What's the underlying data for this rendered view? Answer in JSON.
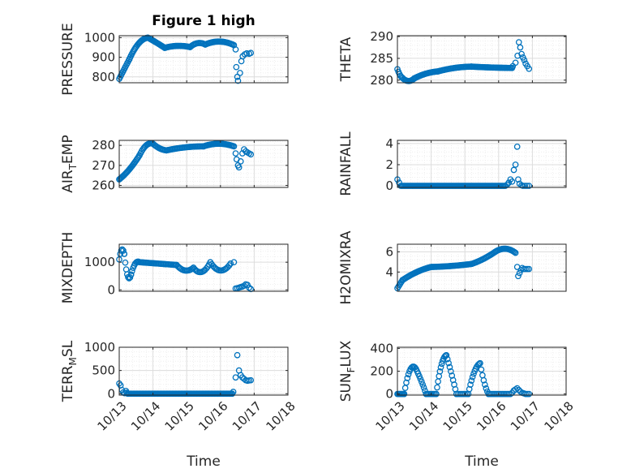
{
  "figure": {
    "title": "Figure 1 high",
    "xlabel": "Time",
    "colors": {
      "marker": "#0072BD",
      "axis": "#262626",
      "grid_major": "#dcdcdc",
      "grid_minor": "#ebebeb"
    }
  },
  "chart_data": [
    {
      "id": "pressure",
      "type": "scatter",
      "title": "Figure 1 high",
      "ylabel": "PRESSURE",
      "xlim": [
        0,
        5
      ],
      "ylim": [
        770,
        1010
      ],
      "xticks": [
        0,
        1,
        2,
        3,
        4,
        5
      ],
      "xticklabels": [
        "10/13",
        "10/14",
        "10/15",
        "10/16",
        "10/17",
        "10/18"
      ],
      "yticks": [
        800,
        900,
        1000
      ],
      "yticklabels": [
        "800",
        "900",
        "1000"
      ],
      "grid": true,
      "segments": [
        {
          "x0": 0,
          "x1": 0.3,
          "n": 12,
          "y": [
            790,
            840,
            890
          ]
        },
        {
          "x0": 0.3,
          "x1": 0.85,
          "n": 22,
          "y": [
            890,
            970,
            1000
          ]
        },
        {
          "x0": 0.85,
          "x1": 1.35,
          "n": 18,
          "y": [
            1000,
            975,
            948
          ]
        },
        {
          "x0": 1.35,
          "x1": 2.1,
          "n": 24,
          "y": [
            948,
            958,
            952
          ]
        },
        {
          "x0": 2.1,
          "x1": 2.55,
          "n": 14,
          "y": [
            952,
            972,
            965
          ]
        },
        {
          "x0": 2.55,
          "x1": 3.4,
          "n": 26,
          "y": [
            965,
            980,
            962
          ]
        }
      ],
      "points": [
        [
          3.45,
          940
        ],
        [
          3.47,
          850
        ],
        [
          3.5,
          800
        ],
        [
          3.52,
          780
        ],
        [
          3.58,
          820
        ],
        [
          3.62,
          880
        ],
        [
          3.66,
          905
        ],
        [
          3.72,
          915
        ],
        [
          3.78,
          920
        ],
        [
          3.85,
          918
        ],
        [
          3.9,
          922
        ]
      ]
    },
    {
      "id": "theta",
      "type": "scatter",
      "ylabel": "THETA",
      "xlim": [
        0,
        5
      ],
      "ylim": [
        279.4,
        290.2
      ],
      "xticks": [
        0,
        1,
        2,
        3,
        4,
        5
      ],
      "xticklabels": [
        "10/13",
        "10/14",
        "10/15",
        "10/16",
        "10/17",
        "10/18"
      ],
      "yticks": [
        280,
        285,
        290
      ],
      "yticklabels": [
        "280",
        "285",
        "290"
      ],
      "grid": true,
      "segments": [
        {
          "x0": 0,
          "x1": 0.15,
          "n": 6,
          "y": [
            282.5,
            281.2,
            280.5
          ]
        },
        {
          "x0": 0.15,
          "x1": 0.5,
          "n": 12,
          "y": [
            280.5,
            279.8,
            280.4
          ]
        },
        {
          "x0": 0.5,
          "x1": 1.2,
          "n": 24,
          "y": [
            280.4,
            281.5,
            282.0
          ]
        },
        {
          "x0": 1.2,
          "x1": 2.2,
          "n": 30,
          "y": [
            282.0,
            282.8,
            283.1
          ]
        },
        {
          "x0": 2.2,
          "x1": 3.4,
          "n": 36,
          "y": [
            283.1,
            282.9,
            282.8
          ]
        }
      ],
      "points": [
        [
          3.42,
          283.2
        ],
        [
          3.5,
          284.0
        ],
        [
          3.56,
          285.6
        ],
        [
          3.6,
          288.7
        ],
        [
          3.64,
          287.5
        ],
        [
          3.68,
          286.0
        ],
        [
          3.72,
          285.2
        ],
        [
          3.76,
          284.6
        ],
        [
          3.8,
          283.8
        ],
        [
          3.85,
          283.2
        ],
        [
          3.9,
          282.6
        ]
      ]
    },
    {
      "id": "air_temp",
      "type": "scatter",
      "ylabel": "AIR_TEMP",
      "ylabel_parts": [
        "AIR",
        "T",
        "EMP"
      ],
      "xlim": [
        0,
        5
      ],
      "ylim": [
        259,
        282.5
      ],
      "xticks": [
        0,
        1,
        2,
        3,
        4,
        5
      ],
      "xticklabels": [
        "10/13",
        "10/14",
        "10/15",
        "10/16",
        "10/17",
        "10/18"
      ],
      "yticks": [
        260,
        270,
        280
      ],
      "yticklabels": [
        "260",
        "270",
        "280"
      ],
      "grid": true,
      "segments": [
        {
          "x0": 0,
          "x1": 0.6,
          "n": 24,
          "y": [
            263,
            268,
            275
          ]
        },
        {
          "x0": 0.6,
          "x1": 1.0,
          "n": 14,
          "y": [
            275,
            280,
            280.8
          ]
        },
        {
          "x0": 1.0,
          "x1": 1.4,
          "n": 12,
          "y": [
            280.8,
            278.5,
            277.5
          ]
        },
        {
          "x0": 1.4,
          "x1": 2.5,
          "n": 32,
          "y": [
            277.5,
            279.0,
            279.5
          ]
        },
        {
          "x0": 2.5,
          "x1": 3.4,
          "n": 28,
          "y": [
            279.5,
            280.8,
            279.5
          ]
        }
      ],
      "points": [
        [
          3.45,
          276
        ],
        [
          3.48,
          273
        ],
        [
          3.52,
          270
        ],
        [
          3.55,
          269
        ],
        [
          3.6,
          272
        ],
        [
          3.65,
          276
        ],
        [
          3.7,
          278
        ],
        [
          3.75,
          277
        ],
        [
          3.8,
          276.5
        ],
        [
          3.85,
          276
        ],
        [
          3.9,
          275.5
        ]
      ]
    },
    {
      "id": "rainfall",
      "type": "scatter",
      "ylabel": "RAINFALL",
      "xlim": [
        0,
        5
      ],
      "ylim": [
        -0.15,
        4.3
      ],
      "xticks": [
        0,
        1,
        2,
        3,
        4,
        5
      ],
      "xticklabels": [
        "10/13",
        "10/14",
        "10/15",
        "10/16",
        "10/17",
        "10/18"
      ],
      "yticks": [
        0,
        2,
        4
      ],
      "yticklabels": [
        "0",
        "2",
        "4"
      ],
      "grid": true,
      "segments": [
        {
          "x0": 0.1,
          "x1": 3.2,
          "n": 95,
          "y": [
            0,
            0,
            0
          ]
        }
      ],
      "points": [
        [
          0,
          0.6
        ],
        [
          0.05,
          0.3
        ],
        [
          3.25,
          0.1
        ],
        [
          3.3,
          0.3
        ],
        [
          3.35,
          0.6
        ],
        [
          3.4,
          0.4
        ],
        [
          3.45,
          1.5
        ],
        [
          3.5,
          2.0
        ],
        [
          3.55,
          3.7
        ],
        [
          3.58,
          0.6
        ],
        [
          3.62,
          0.2
        ],
        [
          3.68,
          0.05
        ],
        [
          3.72,
          0
        ],
        [
          3.78,
          0
        ],
        [
          3.84,
          0
        ],
        [
          3.9,
          0
        ]
      ]
    },
    {
      "id": "mixdepth",
      "type": "scatter",
      "ylabel": "MIXDEPTH",
      "xlim": [
        0,
        5
      ],
      "ylim": [
        -50,
        1650
      ],
      "xticks": [
        0,
        1,
        2,
        3,
        4,
        5
      ],
      "xticklabels": [
        "10/13",
        "10/14",
        "10/15",
        "10/16",
        "10/17",
        "10/18"
      ],
      "yticks": [
        0,
        1000
      ],
      "yticklabels": [
        "0",
        "1000"
      ],
      "grid": true,
      "segments": [
        {
          "x0": 0,
          "x1": 0.15,
          "n": 6,
          "y": [
            1100,
            1450,
            1300
          ]
        },
        {
          "x0": 0.15,
          "x1": 0.35,
          "n": 8,
          "y": [
            1300,
            500,
            550
          ]
        },
        {
          "x0": 0.35,
          "x1": 0.6,
          "n": 9,
          "y": [
            550,
            950,
            1000
          ]
        },
        {
          "x0": 0.6,
          "x1": 1.7,
          "n": 32,
          "y": [
            1000,
            950,
            900
          ]
        },
        {
          "x0": 1.7,
          "x1": 2.2,
          "n": 14,
          "y": [
            900,
            700,
            800
          ]
        },
        {
          "x0": 2.2,
          "x1": 2.7,
          "n": 14,
          "y": [
            800,
            650,
            1000
          ]
        },
        {
          "x0": 2.7,
          "x1": 3.3,
          "n": 16,
          "y": [
            1000,
            700,
            950
          ]
        }
      ],
      "points": [
        [
          3.4,
          1000
        ],
        [
          3.45,
          50
        ],
        [
          3.5,
          60
        ],
        [
          3.55,
          80
        ],
        [
          3.6,
          100
        ],
        [
          3.65,
          120
        ],
        [
          3.7,
          150
        ],
        [
          3.75,
          200
        ],
        [
          3.8,
          180
        ],
        [
          3.85,
          80
        ],
        [
          3.9,
          30
        ]
      ]
    },
    {
      "id": "h2omixra",
      "type": "scatter",
      "ylabel": "H2OMIXRA",
      "xlim": [
        0,
        5
      ],
      "ylim": [
        2.1,
        6.75
      ],
      "xticks": [
        0,
        1,
        2,
        3,
        4,
        5
      ],
      "xticklabels": [
        "10/13",
        "10/14",
        "10/15",
        "10/16",
        "10/17",
        "10/18"
      ],
      "yticks": [
        4,
        6
      ],
      "yticklabels": [
        "4",
        "6"
      ],
      "grid": true,
      "segments": [
        {
          "x0": 0,
          "x1": 0.15,
          "n": 6,
          "y": [
            2.4,
            2.8,
            3.2
          ]
        },
        {
          "x0": 0.15,
          "x1": 1.0,
          "n": 28,
          "y": [
            3.2,
            4.0,
            4.5
          ]
        },
        {
          "x0": 1.0,
          "x1": 2.2,
          "n": 36,
          "y": [
            4.5,
            4.6,
            4.8
          ]
        },
        {
          "x0": 2.2,
          "x1": 2.9,
          "n": 22,
          "y": [
            4.8,
            5.3,
            6.0
          ]
        },
        {
          "x0": 2.9,
          "x1": 3.5,
          "n": 20,
          "y": [
            6.0,
            6.3,
            5.9
          ]
        }
      ],
      "points": [
        [
          3.55,
          4.5
        ],
        [
          3.58,
          3.6
        ],
        [
          3.62,
          3.9
        ],
        [
          3.66,
          4.2
        ],
        [
          3.7,
          4.4
        ],
        [
          3.75,
          4.3
        ],
        [
          3.8,
          4.3
        ],
        [
          3.85,
          4.3
        ],
        [
          3.9,
          4.3
        ]
      ]
    },
    {
      "id": "terr_msl",
      "type": "scatter",
      "ylabel": "TERR_MSL",
      "ylabel_parts": [
        "TERR",
        "M",
        "SL"
      ],
      "xlim": [
        0,
        5
      ],
      "ylim": [
        -30,
        1000
      ],
      "xticks": [
        0,
        1,
        2,
        3,
        4,
        5
      ],
      "xticklabels": [
        "10/13",
        "10/14",
        "10/15",
        "10/16",
        "10/17",
        "10/18"
      ],
      "yticks": [
        0,
        500,
        1000
      ],
      "yticklabels": [
        "0",
        "500",
        "1000"
      ],
      "grid": true,
      "segments": [
        {
          "x0": 0.25,
          "x1": 3.35,
          "n": 95,
          "y": [
            0,
            0,
            0
          ]
        }
      ],
      "points": [
        [
          0,
          220
        ],
        [
          0.04,
          180
        ],
        [
          0.08,
          80
        ],
        [
          0.12,
          30
        ],
        [
          0.16,
          10
        ],
        [
          0.2,
          60
        ],
        [
          0.22,
          20
        ],
        [
          3.38,
          40
        ],
        [
          3.45,
          350
        ],
        [
          3.5,
          830
        ],
        [
          3.55,
          500
        ],
        [
          3.6,
          400
        ],
        [
          3.65,
          350
        ],
        [
          3.7,
          320
        ],
        [
          3.75,
          290
        ],
        [
          3.8,
          280
        ],
        [
          3.85,
          285
        ],
        [
          3.9,
          290
        ]
      ]
    },
    {
      "id": "sun_flux",
      "type": "scatter",
      "ylabel": "SUN_FLUX",
      "ylabel_parts": [
        "SUN",
        "F",
        "LUX"
      ],
      "xlim": [
        0,
        5
      ],
      "ylim": [
        -10,
        410
      ],
      "xticks": [
        0,
        1,
        2,
        3,
        4,
        5
      ],
      "xticklabels": [
        "10/13",
        "10/14",
        "10/15",
        "10/16",
        "10/17",
        "10/18"
      ],
      "yticks": [
        0,
        200,
        400
      ],
      "yticklabels": [
        "0",
        "200",
        "400"
      ],
      "grid": true,
      "segments": [
        {
          "x0": 0,
          "x1": 0.2,
          "n": 8,
          "y": [
            0,
            0,
            0
          ]
        },
        {
          "x0": 0.2,
          "x1": 0.55,
          "n": 12,
          "y": [
            0,
            210,
            220
          ]
        },
        {
          "x0": 0.55,
          "x1": 0.85,
          "n": 10,
          "y": [
            220,
            120,
            0
          ]
        },
        {
          "x0": 0.85,
          "x1": 1.15,
          "n": 8,
          "y": [
            0,
            0,
            0
          ]
        },
        {
          "x0": 1.15,
          "x1": 1.45,
          "n": 12,
          "y": [
            0,
            250,
            340
          ]
        },
        {
          "x0": 1.45,
          "x1": 1.75,
          "n": 10,
          "y": [
            340,
            180,
            0
          ]
        },
        {
          "x0": 1.75,
          "x1": 2.1,
          "n": 8,
          "y": [
            0,
            0,
            0
          ]
        },
        {
          "x0": 2.1,
          "x1": 2.45,
          "n": 12,
          "y": [
            0,
            190,
            270
          ]
        },
        {
          "x0": 2.45,
          "x1": 2.7,
          "n": 8,
          "y": [
            270,
            100,
            0
          ]
        },
        {
          "x0": 2.7,
          "x1": 3.3,
          "n": 14,
          "y": [
            0,
            0,
            0
          ]
        }
      ],
      "points": [
        [
          3.35,
          0
        ],
        [
          3.4,
          10
        ],
        [
          3.45,
          30
        ],
        [
          3.5,
          40
        ],
        [
          3.55,
          50
        ],
        [
          3.6,
          35
        ],
        [
          3.65,
          20
        ],
        [
          3.7,
          10
        ],
        [
          3.75,
          5
        ],
        [
          3.8,
          0
        ],
        [
          3.85,
          0
        ],
        [
          3.9,
          0
        ]
      ]
    }
  ]
}
